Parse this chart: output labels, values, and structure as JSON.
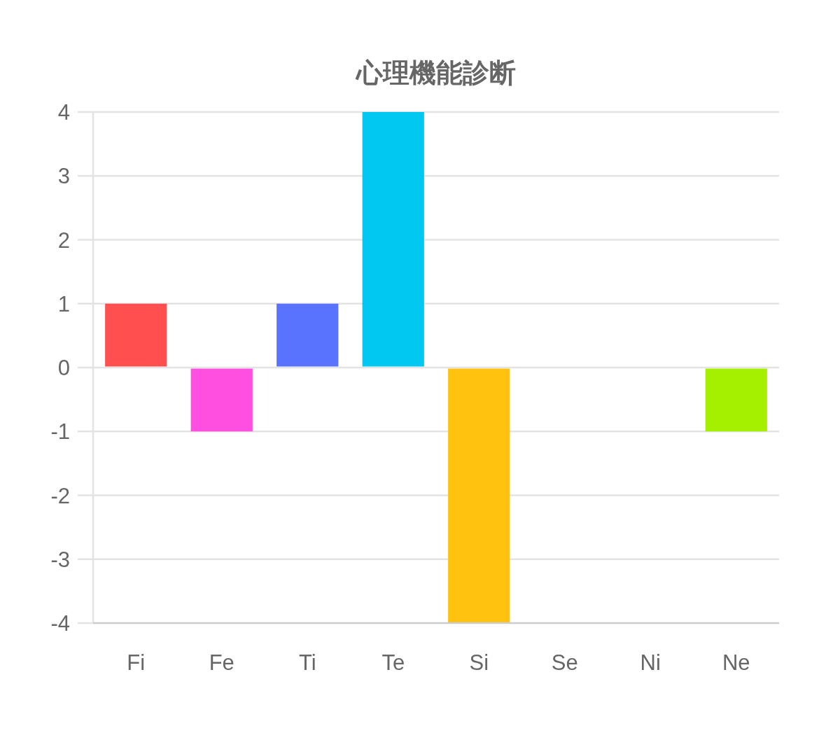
{
  "chart_data": {
    "type": "bar",
    "title": "心理機能診断",
    "categories": [
      "Fi",
      "Fe",
      "Ti",
      "Te",
      "Si",
      "Se",
      "Ni",
      "Ne"
    ],
    "values": [
      1,
      -1,
      1,
      4,
      -4,
      0,
      0,
      -1
    ],
    "colors": [
      "#ff4f4f",
      "#ff4fe0",
      "#5a73ff",
      "#00c8f0",
      "#ffc20e",
      null,
      null,
      "#a4f000"
    ],
    "ylim": [
      -4,
      4
    ],
    "yticks": [
      -4,
      -3,
      -2,
      -1,
      0,
      1,
      2,
      3,
      4
    ],
    "grid": "y"
  }
}
